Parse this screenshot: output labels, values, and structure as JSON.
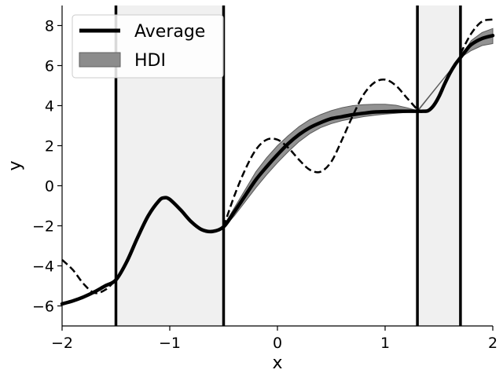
{
  "chart_data": {
    "type": "line",
    "xlabel": "x",
    "ylabel": "y",
    "xlim": [
      -2,
      2
    ],
    "ylim": [
      -7,
      9
    ],
    "xticks": [
      -2,
      -1,
      0,
      1,
      2
    ],
    "xtick_labels": [
      "−2",
      "−1",
      "0",
      "1",
      "2"
    ],
    "yticks": [
      -6,
      -4,
      -2,
      0,
      2,
      4,
      6,
      8
    ],
    "ytick_labels": [
      "−6",
      "−4",
      "−2",
      "0",
      "2",
      "4",
      "6",
      "8"
    ],
    "grid": false,
    "legend": {
      "placement": "upper-left",
      "entries": [
        {
          "label": "Average",
          "style": "thick-line",
          "color": "#000000"
        },
        {
          "label": "HDI",
          "style": "band",
          "color": "#8c8c8c"
        }
      ]
    },
    "shaded_regions": [
      {
        "x": [
          -1.5,
          -0.5
        ],
        "color": "#f0f0f0"
      },
      {
        "x": [
          1.3,
          1.7
        ],
        "color": "#f0f0f0"
      }
    ],
    "vertical_lines": [
      -1.5,
      -0.5,
      1.3,
      1.7
    ],
    "series": [
      {
        "style": "solid-thick",
        "color": "#000000",
        "points": [
          [
            -2.0,
            -5.9
          ],
          [
            -1.9,
            -5.75
          ],
          [
            -1.8,
            -5.55
          ],
          [
            -1.7,
            -5.3
          ],
          [
            -1.6,
            -5.0
          ],
          [
            -1.5,
            -4.7
          ],
          [
            -1.4,
            -3.8
          ],
          [
            -1.3,
            -2.6
          ],
          [
            -1.2,
            -1.5
          ],
          [
            -1.1,
            -0.75
          ],
          [
            -1.05,
            -0.6
          ],
          [
            -1.0,
            -0.68
          ],
          [
            -0.9,
            -1.2
          ],
          [
            -0.8,
            -1.8
          ],
          [
            -0.7,
            -2.2
          ],
          [
            -0.6,
            -2.28
          ],
          [
            -0.5,
            -2.05
          ],
          [
            -0.4,
            -1.3
          ],
          [
            -0.3,
            -0.5
          ],
          [
            -0.2,
            0.3
          ],
          [
            -0.1,
            0.95
          ],
          [
            0.0,
            1.55
          ],
          [
            0.1,
            2.1
          ],
          [
            0.2,
            2.55
          ],
          [
            0.3,
            2.9
          ],
          [
            0.4,
            3.15
          ],
          [
            0.5,
            3.35
          ],
          [
            0.6,
            3.45
          ],
          [
            0.7,
            3.55
          ],
          [
            0.8,
            3.62
          ],
          [
            0.9,
            3.68
          ],
          [
            1.0,
            3.7
          ],
          [
            1.1,
            3.72
          ],
          [
            1.2,
            3.72
          ],
          [
            1.3,
            3.72
          ],
          [
            1.35,
            3.72
          ],
          [
            1.4,
            3.75
          ],
          [
            1.45,
            4.0
          ],
          [
            1.5,
            4.45
          ],
          [
            1.55,
            5.05
          ],
          [
            1.6,
            5.6
          ],
          [
            1.65,
            6.05
          ],
          [
            1.7,
            6.4
          ],
          [
            1.75,
            6.75
          ],
          [
            1.8,
            7.05
          ],
          [
            1.9,
            7.35
          ],
          [
            2.0,
            7.5
          ]
        ]
      },
      {
        "style": "dashed",
        "color": "#000000",
        "points": [
          [
            -2.0,
            -3.7
          ],
          [
            -1.9,
            -4.2
          ],
          [
            -1.8,
            -4.9
          ],
          [
            -1.7,
            -5.35
          ],
          [
            -1.6,
            -5.2
          ],
          [
            -1.5,
            -4.7
          ],
          [
            -0.5,
            -2.05
          ],
          [
            -0.4,
            -0.5
          ],
          [
            -0.3,
            0.8
          ],
          [
            -0.2,
            1.8
          ],
          [
            -0.1,
            2.3
          ],
          [
            0.0,
            2.3
          ],
          [
            0.1,
            1.9
          ],
          [
            0.2,
            1.3
          ],
          [
            0.3,
            0.8
          ],
          [
            0.4,
            0.7
          ],
          [
            0.5,
            1.2
          ],
          [
            0.6,
            2.3
          ],
          [
            0.7,
            3.5
          ],
          [
            0.8,
            4.55
          ],
          [
            0.9,
            5.15
          ],
          [
            1.0,
            5.3
          ],
          [
            1.1,
            5.0
          ],
          [
            1.2,
            4.4
          ],
          [
            1.3,
            3.8
          ],
          [
            1.7,
            6.6
          ],
          [
            1.8,
            7.6
          ],
          [
            1.9,
            8.2
          ],
          [
            2.0,
            8.3
          ]
        ]
      }
    ],
    "hdi_band": {
      "color": "#8c8c8c",
      "points": [
        [
          -0.5,
          -2.1,
          -2.0
        ],
        [
          -0.4,
          -1.5,
          -1.1
        ],
        [
          -0.3,
          -0.8,
          -0.2
        ],
        [
          -0.2,
          -0.1,
          0.7
        ],
        [
          -0.1,
          0.55,
          1.4
        ],
        [
          0.0,
          1.15,
          2.0
        ],
        [
          0.1,
          1.7,
          2.5
        ],
        [
          0.2,
          2.2,
          2.95
        ],
        [
          0.3,
          2.6,
          3.3
        ],
        [
          0.4,
          2.9,
          3.55
        ],
        [
          0.5,
          3.1,
          3.75
        ],
        [
          0.6,
          3.25,
          3.9
        ],
        [
          0.7,
          3.35,
          4.0
        ],
        [
          0.8,
          3.45,
          4.05
        ],
        [
          0.9,
          3.52,
          4.07
        ],
        [
          1.0,
          3.58,
          4.07
        ],
        [
          1.1,
          3.62,
          4.02
        ],
        [
          1.2,
          3.66,
          3.9
        ],
        [
          1.3,
          3.7,
          3.75
        ],
        [
          1.7,
          6.4,
          6.4
        ],
        [
          1.8,
          6.75,
          7.25
        ],
        [
          1.9,
          7.0,
          7.65
        ],
        [
          2.0,
          7.1,
          7.85
        ]
      ]
    }
  }
}
